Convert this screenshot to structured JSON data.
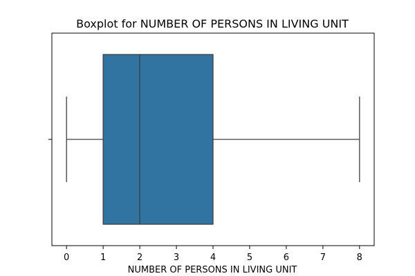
{
  "chart_data": {
    "type": "boxplot",
    "title": "Boxplot for NUMBER OF PERSONS IN LIVING UNIT",
    "xlabel": "NUMBER OF PERSONS IN LIVING UNIT",
    "ylabel": "",
    "orientation": "horizontal",
    "xlim": [
      -0.4,
      8.4
    ],
    "x_ticks": [
      0,
      1,
      2,
      3,
      4,
      5,
      6,
      7,
      8
    ],
    "x_tick_labels": [
      "0",
      "1",
      "2",
      "3",
      "4",
      "5",
      "6",
      "7",
      "8"
    ],
    "grid": false,
    "box": {
      "whisker_low": 0,
      "q1": 1,
      "median": 2,
      "q3": 4,
      "whisker_high": 8,
      "outliers": []
    },
    "colors": {
      "box_fill": "#3274a1",
      "line": "#3f3f3f"
    }
  }
}
